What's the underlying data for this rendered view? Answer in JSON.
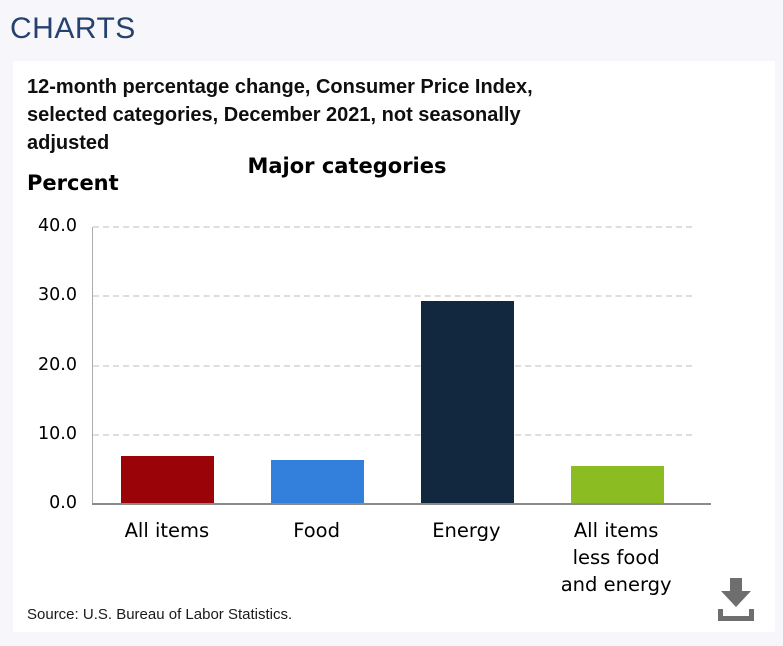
{
  "page": {
    "header": "CHARTS"
  },
  "panel": {
    "title_line1": "12-month percentage change, Consumer Price Index,",
    "title_line2": "selected categories, December 2021, not seasonally",
    "title_line3": "adjusted",
    "source": "Source: U.S. Bureau of Labor Statistics."
  },
  "colors": {
    "page_background": "#f7f7fb",
    "header_text": "#25426f",
    "download_icon": "#6e6e6e",
    "gridline": "#dedede",
    "axis_line": "#8a8a8a"
  },
  "chart_data": {
    "type": "bar",
    "title": "Major categories",
    "ylabel": "Percent",
    "categories": [
      "All items",
      "Food",
      "Energy",
      "All items less food and energy"
    ],
    "tick_labels": [
      "All items",
      "Food",
      "Energy",
      "All items\nless food\nand energy"
    ],
    "values": [
      7.0,
      6.3,
      29.3,
      5.5
    ],
    "bar_colors": [
      "#9a0408",
      "#3380dc",
      "#12283e",
      "#8bbd22"
    ],
    "ylim": [
      0,
      40
    ],
    "yticks": [
      0.0,
      10.0,
      20.0,
      30.0,
      40.0
    ],
    "gridlines": [
      10,
      20,
      30,
      40
    ],
    "grid_style": "dashed",
    "legend": "none",
    "period": "December 2021",
    "adjustment": "not seasonally adjusted"
  }
}
